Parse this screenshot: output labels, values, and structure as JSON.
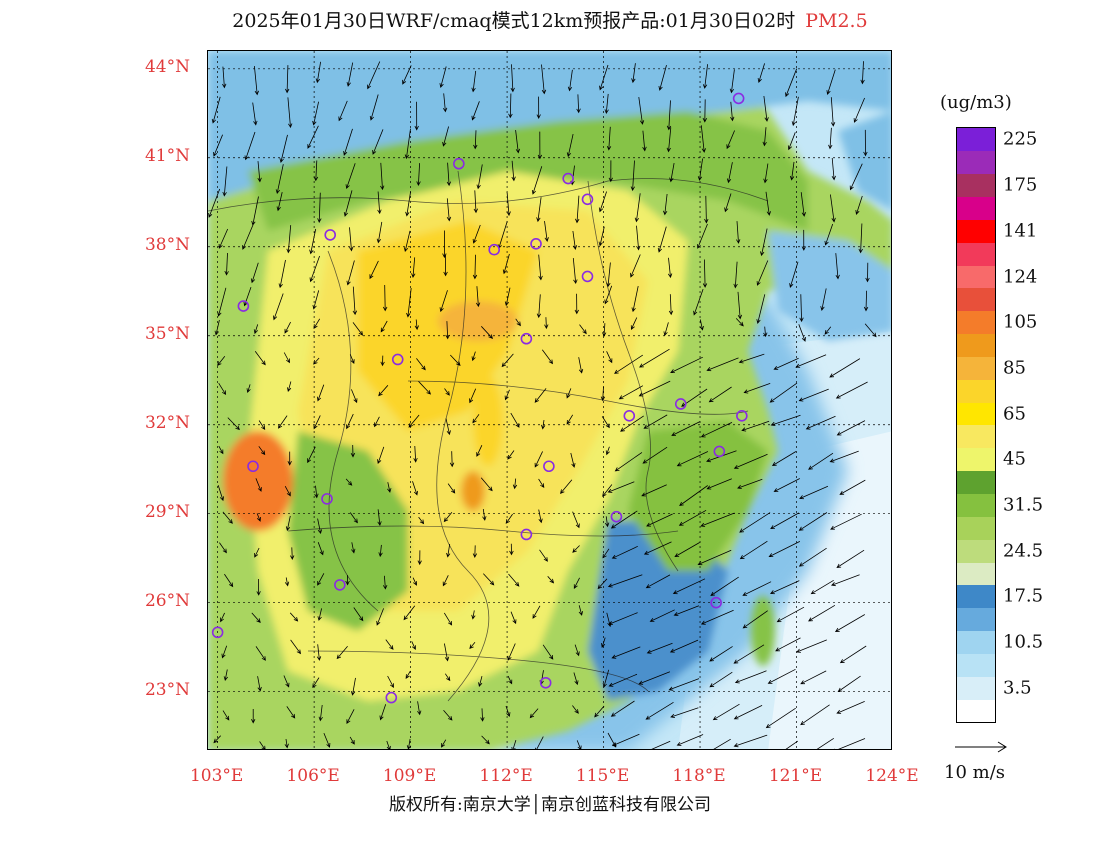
{
  "title": {
    "main": "2025年01月30日WRF/cmaq模式12km预报产品:01月30日02时",
    "pollutant": "PM2.5"
  },
  "map": {
    "lat_labels": [
      "44°N",
      "41°N",
      "38°N",
      "35°N",
      "32°N",
      "29°N",
      "26°N",
      "23°N"
    ],
    "lat_values": [
      44,
      41,
      38,
      35,
      32,
      29,
      26,
      23
    ],
    "lon_labels": [
      "103°E",
      "106°E",
      "109°E",
      "112°E",
      "115°E",
      "118°E",
      "121°E",
      "124°E"
    ],
    "lon_values": [
      103,
      106,
      109,
      112,
      115,
      118,
      121,
      124
    ],
    "extent": {
      "lon_min": 102.7,
      "lon_max": 124.0,
      "lat_min": 21.0,
      "lat_max": 44.6
    },
    "cities": [
      [
        119.2,
        43.0
      ],
      [
        110.5,
        40.8
      ],
      [
        113.9,
        40.3
      ],
      [
        114.5,
        39.6
      ],
      [
        106.5,
        38.4
      ],
      [
        111.6,
        37.9
      ],
      [
        112.9,
        38.1
      ],
      [
        114.5,
        37.0
      ],
      [
        103.8,
        36.0
      ],
      [
        112.6,
        34.9
      ],
      [
        108.6,
        34.2
      ],
      [
        115.8,
        32.3
      ],
      [
        117.4,
        32.7
      ],
      [
        119.3,
        32.3
      ],
      [
        118.6,
        31.1
      ],
      [
        104.1,
        30.6
      ],
      [
        113.3,
        30.6
      ],
      [
        106.4,
        29.5
      ],
      [
        115.4,
        28.9
      ],
      [
        112.6,
        28.3
      ],
      [
        106.8,
        26.6
      ],
      [
        118.5,
        26.0
      ],
      [
        103.0,
        25.0
      ],
      [
        108.4,
        22.8
      ],
      [
        113.2,
        23.3
      ]
    ]
  },
  "legend": {
    "unit": "(ug/m3)",
    "colors": [
      "#ffffff",
      "#d8eef8",
      "#b8e2f5",
      "#9fd4f0",
      "#66aadd",
      "#3e88c8",
      "#dcebc3",
      "#bddc7c",
      "#a8d25a",
      "#85c13f",
      "#5ea22f",
      "#eef56b",
      "#f8e860",
      "#ffe600",
      "#fbd52a",
      "#f5b43a",
      "#ef9a1c",
      "#f47c2a",
      "#e8503a",
      "#f86a6a",
      "#f23a5a",
      "#ff0000",
      "#d8008a",
      "#a83060",
      "#9b2bb8",
      "#7b1fd8"
    ],
    "labels": [
      "3.5",
      "10.5",
      "17.5",
      "24.5",
      "31.5",
      "45",
      "65",
      "85",
      "105",
      "124",
      "141",
      "175",
      "225"
    ],
    "ref_vector": "10 m/s"
  },
  "footer": {
    "copyright": "版权所有:南京大学│南京创蓝科技有限公司"
  }
}
